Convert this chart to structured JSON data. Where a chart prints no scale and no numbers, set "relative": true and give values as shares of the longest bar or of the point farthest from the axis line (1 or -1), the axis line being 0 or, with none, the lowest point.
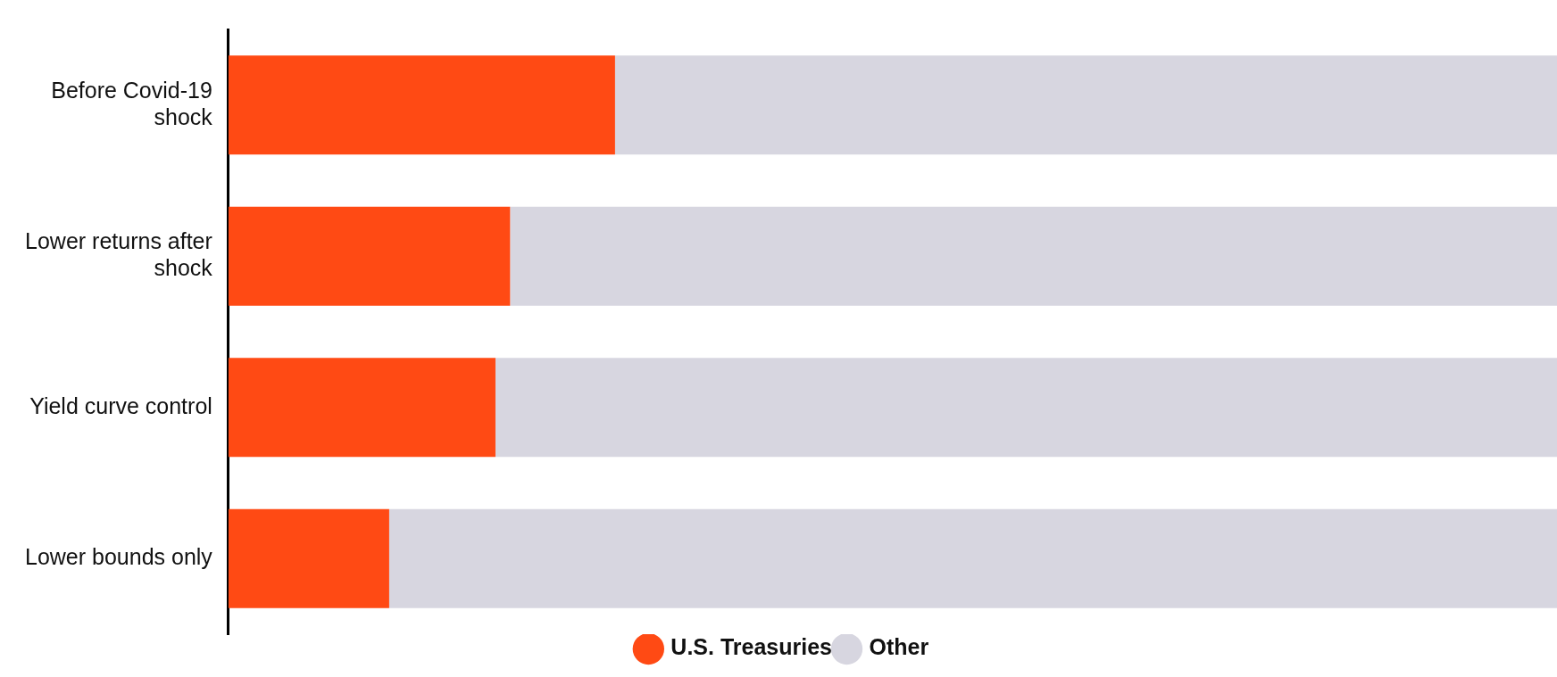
{
  "chart_data": {
    "type": "bar",
    "orientation": "horizontal",
    "stacked": true,
    "relative": true,
    "legend": "bottom",
    "categories": [
      "Before Covid-19 shock",
      "Lower returns after shock",
      "Yield curve control",
      "Lower bounds only"
    ],
    "series": [
      {
        "name": "U.S. Treasuries",
        "color": "#ff4a14",
        "values": [
          0.291,
          0.212,
          0.201,
          0.121
        ]
      },
      {
        "name": "Other",
        "color": "#d7d6e0",
        "values": [
          0.709,
          0.788,
          0.799,
          0.879
        ]
      }
    ]
  }
}
